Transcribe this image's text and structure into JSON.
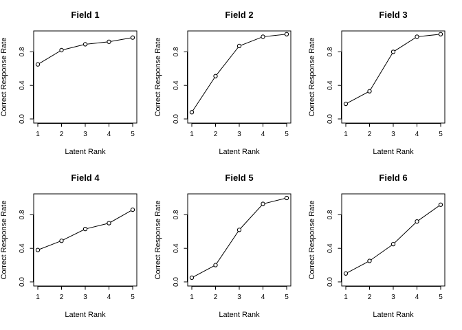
{
  "chart_data": [
    {
      "type": "line",
      "title": "Field 1",
      "xlabel": "Latent Rank",
      "ylabel": "Correct Response Rate",
      "x": [
        1,
        2,
        3,
        4,
        5
      ],
      "y": [
        0.65,
        0.82,
        0.89,
        0.92,
        0.97
      ],
      "xticks": [
        "1",
        "2",
        "3",
        "4",
        "5"
      ],
      "yticks": [
        "0.0",
        "0.4",
        "0.8"
      ],
      "xlim": [
        1,
        5
      ],
      "ylim": [
        0,
        1
      ],
      "grid": false,
      "marker": "open-circle"
    },
    {
      "type": "line",
      "title": "Field 2",
      "xlabel": "Latent Rank",
      "ylabel": "Correct Response Rate",
      "x": [
        1,
        2,
        3,
        4,
        5
      ],
      "y": [
        0.08,
        0.51,
        0.87,
        0.98,
        1.01
      ],
      "xticks": [
        "1",
        "2",
        "3",
        "4",
        "5"
      ],
      "yticks": [
        "0.0",
        "0.4",
        "0.8"
      ],
      "xlim": [
        1,
        5
      ],
      "ylim": [
        0,
        1
      ],
      "grid": false,
      "marker": "open-circle"
    },
    {
      "type": "line",
      "title": "Field 3",
      "xlabel": "Latent Rank",
      "ylabel": "Correct Response Rate",
      "x": [
        1,
        2,
        3,
        4,
        5
      ],
      "y": [
        0.18,
        0.33,
        0.8,
        0.98,
        1.01
      ],
      "xticks": [
        "1",
        "2",
        "3",
        "4",
        "5"
      ],
      "yticks": [
        "0.0",
        "0.4",
        "0.8"
      ],
      "xlim": [
        1,
        5
      ],
      "ylim": [
        0,
        1
      ],
      "grid": false,
      "marker": "open-circle"
    },
    {
      "type": "line",
      "title": "Field 4",
      "xlabel": "Latent Rank",
      "ylabel": "Correct Response Rate",
      "x": [
        1,
        2,
        3,
        4,
        5
      ],
      "y": [
        0.38,
        0.49,
        0.63,
        0.7,
        0.86
      ],
      "xticks": [
        "1",
        "2",
        "3",
        "4",
        "5"
      ],
      "yticks": [
        "0.0",
        "0.4",
        "0.8"
      ],
      "xlim": [
        1,
        5
      ],
      "ylim": [
        0,
        1
      ],
      "grid": false,
      "marker": "open-circle"
    },
    {
      "type": "line",
      "title": "Field 5",
      "xlabel": "Latent Rank",
      "ylabel": "Correct Response Rate",
      "x": [
        1,
        2,
        3,
        4,
        5
      ],
      "y": [
        0.05,
        0.2,
        0.62,
        0.93,
        1.0
      ],
      "xticks": [
        "1",
        "2",
        "3",
        "4",
        "5"
      ],
      "yticks": [
        "0.0",
        "0.4",
        "0.8"
      ],
      "xlim": [
        1,
        5
      ],
      "ylim": [
        0,
        1
      ],
      "grid": false,
      "marker": "open-circle"
    },
    {
      "type": "line",
      "title": "Field 6",
      "xlabel": "Latent Rank",
      "ylabel": "Correct Response Rate",
      "x": [
        1,
        2,
        3,
        4,
        5
      ],
      "y": [
        0.1,
        0.25,
        0.45,
        0.72,
        0.92
      ],
      "xticks": [
        "1",
        "2",
        "3",
        "4",
        "5"
      ],
      "yticks": [
        "0.0",
        "0.4",
        "0.8"
      ],
      "xlim": [
        1,
        5
      ],
      "ylim": [
        0,
        1
      ],
      "grid": false,
      "marker": "open-circle"
    }
  ]
}
